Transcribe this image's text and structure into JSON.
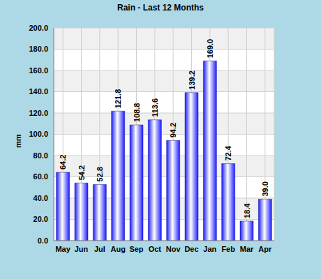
{
  "chart_data": {
    "type": "bar",
    "title": "Rain - Last 12 Months",
    "y_label": "mm",
    "categories": [
      "May",
      "Jun",
      "Jul",
      "Aug",
      "Sep",
      "Oct",
      "Nov",
      "Dec",
      "Jan",
      "Feb",
      "Mar",
      "Apr"
    ],
    "values": [
      64.2,
      54.2,
      52.8,
      121.8,
      108.8,
      113.6,
      94.2,
      139.2,
      169.0,
      72.4,
      18.4,
      39.0
    ],
    "value_labels": [
      "64.2",
      "54.2",
      "52.8",
      "121.8",
      "108.8",
      "113.6",
      "94.2",
      "139.2",
      "169.0",
      "72.4",
      "18.4",
      "39.0"
    ],
    "color": "#1a1aff",
    "ylim": [
      0,
      200
    ],
    "yticks": [
      {
        "value": 0,
        "label": "0.0"
      },
      {
        "value": 20,
        "label": "20.0"
      },
      {
        "value": 40,
        "label": "40.0"
      },
      {
        "value": 60,
        "label": "60.0"
      },
      {
        "value": 80,
        "label": "80.0"
      },
      {
        "value": 100,
        "label": "100.0"
      },
      {
        "value": 120,
        "label": "120.0"
      },
      {
        "value": 140,
        "label": "140.0"
      },
      {
        "value": 160,
        "label": "160.0"
      },
      {
        "value": 180,
        "label": "180.0"
      },
      {
        "value": 200,
        "label": "200.0"
      }
    ],
    "grid": true,
    "data_labels": true
  }
}
